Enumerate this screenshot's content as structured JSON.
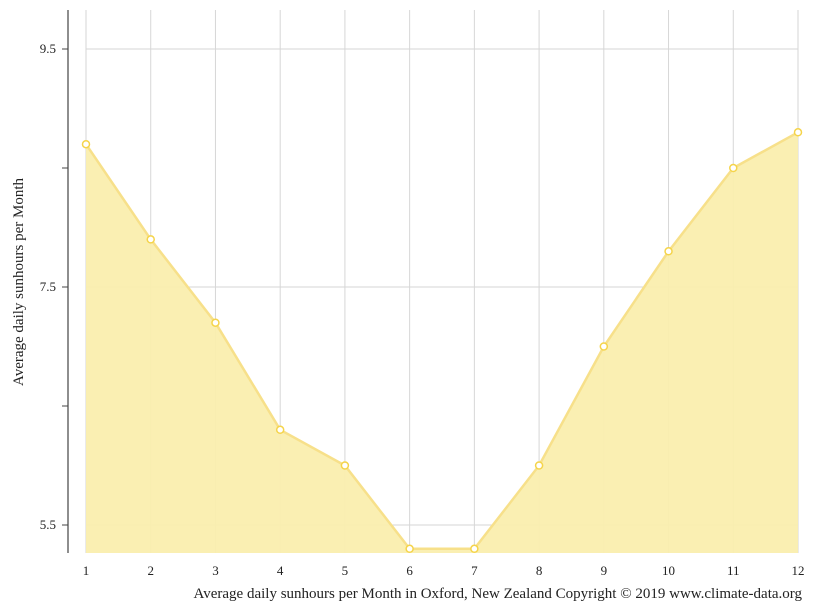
{
  "chart_data": {
    "type": "area",
    "title": "",
    "caption": "Average daily sunhours per Month in Oxford, New Zealand Copyright © 2019 www.climate-data.org",
    "xlabel": "",
    "ylabel": "Average daily sunhours per Month",
    "categories": [
      "1",
      "2",
      "3",
      "4",
      "5",
      "6",
      "7",
      "8",
      "9",
      "10",
      "11",
      "12"
    ],
    "series": [
      {
        "name": "Average daily sunhours",
        "values": [
          8.7,
          7.9,
          7.2,
          6.3,
          6.0,
          5.3,
          5.3,
          6.0,
          7.0,
          7.8,
          8.5,
          8.8
        ],
        "line_color": "#f7e08a",
        "fill_color": "#faeeae",
        "marker_stroke": "#f5d44a",
        "marker_fill": "#ffffff"
      }
    ],
    "yticks": [
      {
        "value": 9.5,
        "label": "9.5"
      },
      {
        "value": 8.5,
        "label": ""
      },
      {
        "value": 7.5,
        "label": "7.5"
      },
      {
        "value": 6.5,
        "label": ""
      },
      {
        "value": 5.5,
        "label": "5.5"
      }
    ],
    "ylim": [
      5.25,
      9.82
    ],
    "grid": true,
    "legend": "none"
  }
}
